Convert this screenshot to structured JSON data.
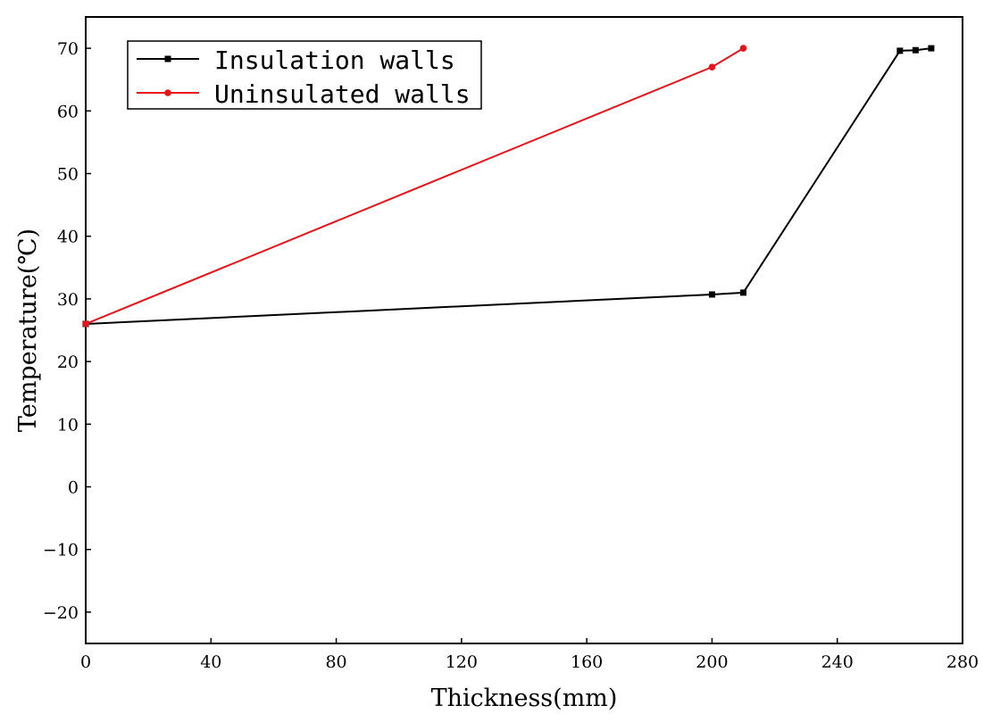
{
  "chart_data": {
    "type": "line",
    "xlabel": "Thickness(mm)",
    "ylabel": "Temperature(℃)",
    "xlim": [
      0,
      280
    ],
    "ylim": [
      -25,
      75
    ],
    "x_ticks": [
      0,
      40,
      80,
      120,
      160,
      200,
      240,
      280
    ],
    "y_ticks": [
      -20,
      -10,
      0,
      10,
      20,
      30,
      40,
      50,
      60,
      70
    ],
    "grid": false,
    "legend_position": "top-left",
    "series": [
      {
        "name": "Insulation walls",
        "color": "#000000",
        "marker": "square",
        "points": [
          [
            0,
            26
          ],
          [
            200,
            30.7
          ],
          [
            210,
            31
          ],
          [
            260,
            69.6
          ],
          [
            265,
            69.7
          ],
          [
            270,
            70
          ]
        ]
      },
      {
        "name": "Uninsulated walls",
        "color": "#e8141c",
        "marker": "circle",
        "points": [
          [
            0,
            26
          ],
          [
            200,
            67
          ],
          [
            210,
            70
          ]
        ]
      }
    ]
  }
}
